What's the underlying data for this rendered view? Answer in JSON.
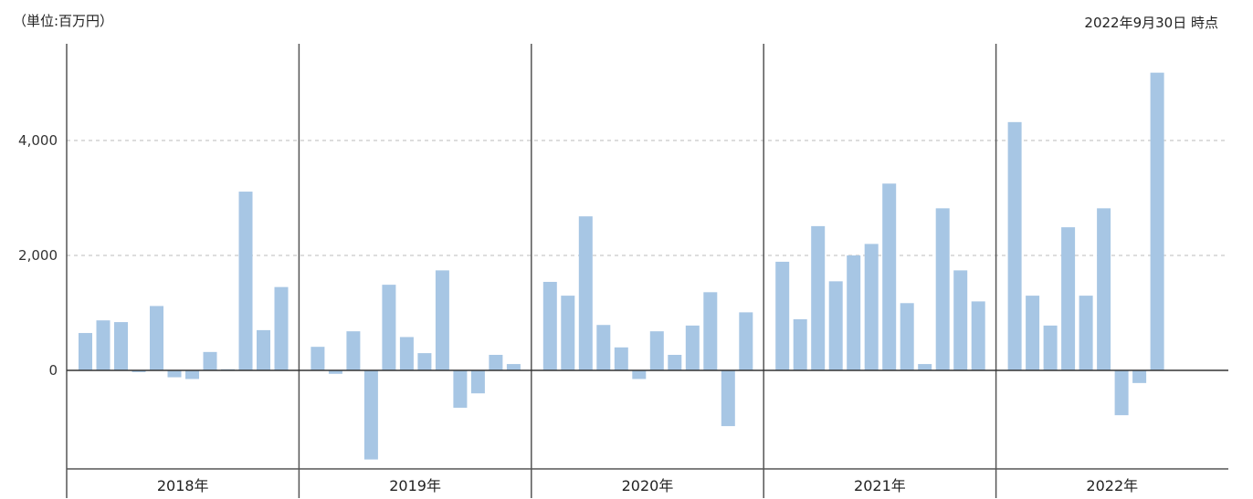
{
  "header": {
    "unit": "（単位:百万円）",
    "as_of": "2022年9月30日 時点"
  },
  "colors": {
    "bar": "#a7c6e4",
    "gridline": "#bbbbbb",
    "axis": "#555555"
  },
  "chart_data": {
    "type": "bar",
    "ylim": [
      -1700,
      5600
    ],
    "yticks": [
      0,
      2000,
      4000
    ],
    "ytick_labels": [
      "0",
      "2,000",
      "4,000"
    ],
    "grid": "horizontal dashed",
    "groups": [
      {
        "label": "2018年",
        "values": [
          650,
          870,
          840,
          -30,
          1120,
          -120,
          -150,
          320,
          20,
          3110,
          700,
          1450
        ]
      },
      {
        "label": "2019年",
        "values": [
          410,
          -60,
          680,
          -1550,
          1490,
          580,
          300,
          1740,
          -650,
          -400,
          270,
          110
        ]
      },
      {
        "label": "2020年",
        "values": [
          1540,
          1300,
          2680,
          790,
          400,
          -150,
          680,
          270,
          780,
          1360,
          -970,
          1010
        ]
      },
      {
        "label": "2021年",
        "values": [
          1890,
          890,
          2510,
          1550,
          2000,
          2200,
          3250,
          1170,
          110,
          2820,
          1740,
          1200
        ]
      },
      {
        "label": "2022年",
        "values": [
          4320,
          1300,
          780,
          2490,
          1300,
          2820,
          -780,
          -220,
          5180
        ]
      }
    ]
  }
}
